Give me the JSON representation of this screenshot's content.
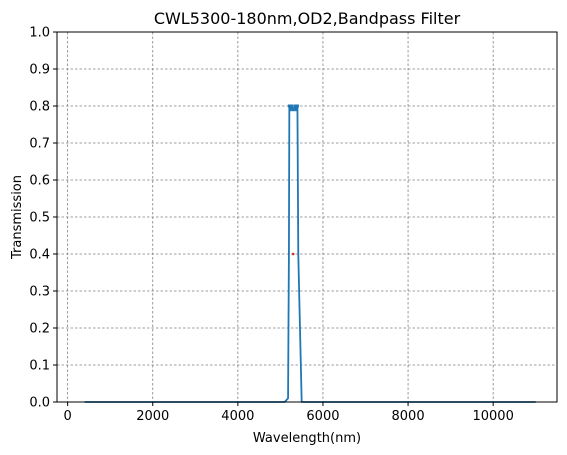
{
  "chart_data": {
    "type": "line",
    "title": "CWL5300-180nm,OD2,Bandpass Filter",
    "xlabel": "Wavelength(nm)",
    "ylabel": "Transmission",
    "xlim": [
      -250,
      11500
    ],
    "ylim": [
      0,
      1.0
    ],
    "x_ticks": [
      0,
      2000,
      4000,
      6000,
      8000,
      10000
    ],
    "x_tick_labels": [
      "0",
      "2000",
      "4000",
      "6000",
      "8000",
      "10000"
    ],
    "y_ticks": [
      0.0,
      0.1,
      0.2,
      0.3,
      0.4,
      0.5,
      0.6,
      0.7,
      0.8,
      0.9,
      1.0
    ],
    "y_tick_labels": [
      "0.0",
      "0.1",
      "0.2",
      "0.3",
      "0.4",
      "0.5",
      "0.6",
      "0.7",
      "0.8",
      "0.9",
      "1.0"
    ],
    "grid": true,
    "series": [
      {
        "color": "#1f77b4",
        "x": [
          400,
          5100,
          5180,
          5200,
          5210,
          5230,
          5260,
          5300,
          5340,
          5370,
          5390,
          5400,
          5420,
          5500,
          11000
        ],
        "y": [
          0.0,
          0.0,
          0.01,
          0.4,
          0.8,
          0.79,
          0.8,
          0.79,
          0.8,
          0.79,
          0.8,
          0.8,
          0.4,
          0.0,
          0.0
        ]
      }
    ],
    "markers": [
      {
        "x": 5300,
        "y": 0.4,
        "color": "#d62728"
      }
    ]
  }
}
